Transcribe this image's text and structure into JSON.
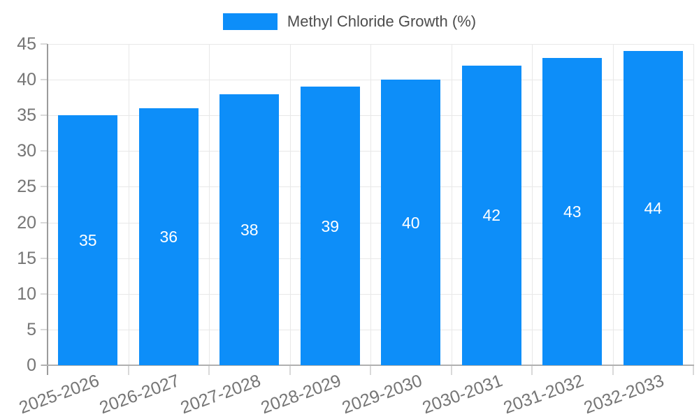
{
  "chart_data": {
    "type": "bar",
    "title": "",
    "legend": "Methyl Chloride Growth (%)",
    "legend_position": "top-center",
    "categories": [
      "2025-2026",
      "2026-2027",
      "2027-2028",
      "2028-2029",
      "2029-2030",
      "2030-2031",
      "2031-2032",
      "2032-2033"
    ],
    "values": [
      35,
      36,
      38,
      39,
      40,
      42,
      43,
      44
    ],
    "bar_value_labels": [
      "35",
      "36",
      "38",
      "39",
      "40",
      "42",
      "43",
      "44"
    ],
    "ylim": [
      0,
      45
    ],
    "yticks": [
      0,
      5,
      10,
      15,
      20,
      25,
      30,
      35,
      40,
      45
    ],
    "grid": "horizontal-and-vertical",
    "x_label_rotation_deg": -20,
    "colors": {
      "bar": "#0d8ef9",
      "grid": "#e8e8e8",
      "y_axis": "#9b9b9b",
      "x_axis": "#b0b0b0",
      "tick": "#d9d9d9",
      "tick_label": "#757575",
      "legend_text": "#4d4d4d",
      "bar_label": "#ffffff",
      "background": "#ffffff"
    }
  }
}
